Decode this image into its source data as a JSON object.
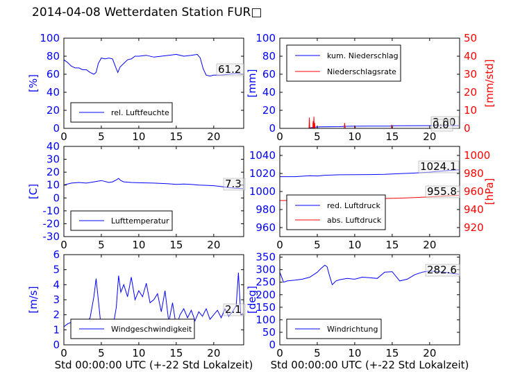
{
  "figure": {
    "title": "2014-04-08 Wetterdaten Station FUR□"
  },
  "colors": {
    "primary": "#0000ff",
    "secondary": "#ff0000",
    "light": "#8080ff",
    "frame": "#000000"
  },
  "chart_data": [
    {
      "type": "line",
      "id": "humidity",
      "ylabel": "[%]",
      "xlim": [
        0,
        24
      ],
      "ylim": [
        0,
        100
      ],
      "xticks": [
        0,
        5,
        10,
        15,
        20
      ],
      "yticks": [
        0,
        20,
        40,
        60,
        80,
        100
      ],
      "legend": "bottom-left",
      "annotations": [
        "61.2"
      ],
      "series": [
        {
          "name": "rel. Luftfeuchte",
          "color": "#0000ff",
          "x": [
            0,
            0.5,
            1,
            1.5,
            2,
            2.5,
            3,
            3.5,
            4,
            4.3,
            4.6,
            5,
            5.5,
            6,
            6.5,
            6.9,
            7.2,
            7.5,
            8,
            8.5,
            9,
            9.5,
            10,
            11,
            12,
            13,
            14,
            15,
            16,
            17,
            17.8,
            18.2,
            18.6,
            19,
            19.5,
            20,
            21,
            22,
            23,
            23.8
          ],
          "y": [
            76,
            73,
            69,
            67,
            67,
            65,
            65,
            62,
            60,
            62,
            72,
            78,
            77,
            78,
            77,
            68,
            62,
            68,
            72,
            76,
            77,
            80,
            80,
            81,
            79,
            80,
            81,
            82,
            80,
            81,
            82,
            78,
            66,
            59,
            58,
            59,
            59,
            60,
            61,
            60
          ]
        }
      ]
    },
    {
      "type": "line",
      "id": "precipitation",
      "ylabel": "[mm]",
      "y2label": "[mm/std]",
      "xlim": [
        0,
        24
      ],
      "ylim": [
        0,
        100
      ],
      "y2lim": [
        0,
        50
      ],
      "xticks": [
        0,
        5,
        10,
        15,
        20
      ],
      "yticks": [
        0,
        20,
        40,
        60,
        80,
        100
      ],
      "y2ticks": [
        0,
        10,
        20,
        30,
        40,
        50
      ],
      "legend": "top-left",
      "annotations": [
        "3.00",
        "0.0"
      ],
      "series": [
        {
          "name": "kum. Niederschlag",
          "color": "#0000ff",
          "axis": "left",
          "x": [
            0,
            3.8,
            4.2,
            4.8,
            5.5,
            8,
            8.8,
            10,
            12,
            14.8,
            15.2,
            20,
            23.9
          ],
          "y": [
            0,
            0,
            0.8,
            1.5,
            1.8,
            1.9,
            2.3,
            2.4,
            2.5,
            2.5,
            2.9,
            3.0,
            3.0
          ]
        },
        {
          "name": "Niederschlagsrate",
          "color": "#ff0000",
          "axis": "right",
          "x": [
            0,
            3.9,
            3.95,
            4.0,
            4.05,
            4.4,
            4.45,
            4.5,
            4.55,
            4.6,
            4.65,
            4.7,
            4.75,
            5.2,
            8.6,
            8.65,
            8.7,
            8.75,
            10,
            10.05,
            10.1,
            14.9,
            14.95,
            15.0,
            15.05,
            23.9
          ],
          "y": [
            0,
            0,
            6,
            0,
            0,
            0,
            4,
            0,
            6.5,
            0,
            3,
            0,
            0,
            0,
            0,
            3,
            1,
            0,
            0,
            1,
            0,
            0,
            2,
            1,
            0,
            0
          ]
        }
      ]
    },
    {
      "type": "line",
      "id": "temperature",
      "ylabel": "[C]",
      "xlim": [
        0,
        24
      ],
      "ylim": [
        -30,
        40
      ],
      "xticks": [
        0,
        5,
        10,
        15,
        20
      ],
      "yticks": [
        -30,
        -20,
        -10,
        0,
        10,
        20,
        30,
        40
      ],
      "legend": "bottom-left",
      "annotations": [
        "7.3"
      ],
      "series": [
        {
          "name": "Lufttemperatur",
          "color": "#0000ff",
          "x": [
            0,
            1,
            2,
            3,
            4,
            5,
            6,
            6.5,
            7,
            7.3,
            7.6,
            8,
            9,
            10,
            12,
            14,
            15,
            16,
            17,
            18,
            19,
            20,
            21,
            22,
            23,
            23.9
          ],
          "y": [
            10,
            11.5,
            12,
            11.5,
            12.5,
            13.5,
            12,
            12.5,
            14,
            15.2,
            13.5,
            12.5,
            12,
            11.8,
            11.5,
            11,
            10.5,
            10.8,
            10.5,
            10,
            9.8,
            9.5,
            8.8,
            8,
            7.5,
            7.3
          ]
        }
      ]
    },
    {
      "type": "line",
      "id": "pressure",
      "ylabel": "",
      "y2label": "[hPa]",
      "xlim": [
        0,
        24
      ],
      "ylim": [
        950,
        1050
      ],
      "y2lim": [
        910,
        1010
      ],
      "xticks": [
        0,
        5,
        10,
        15,
        20
      ],
      "yticks": [
        960,
        980,
        1000,
        1020,
        1040
      ],
      "y2ticks": [
        920,
        940,
        960,
        980,
        1000
      ],
      "legend": "bottom-left",
      "annotations": [
        "1024.1",
        "955.8"
      ],
      "series": [
        {
          "name": "red. Luftdruck",
          "color": "#0000ff",
          "axis": "left",
          "x": [
            0,
            2,
            4,
            5,
            6,
            8,
            10,
            12,
            14,
            16,
            18,
            20,
            22,
            23.9
          ],
          "y": [
            1016.5,
            1016.5,
            1017.5,
            1017.2,
            1018,
            1018.5,
            1018.6,
            1018.8,
            1019,
            1019.8,
            1020.5,
            1021.5,
            1023,
            1024.1
          ]
        },
        {
          "name": "abs. Luftdruck",
          "color": "#ff0000",
          "axis": "right",
          "x": [
            0,
            2,
            4,
            6,
            8,
            10,
            12,
            14,
            16,
            18,
            20,
            22,
            23.9
          ],
          "y": [
            950,
            950,
            950.5,
            951.5,
            952,
            952.3,
            952.5,
            952.3,
            952.6,
            953.2,
            954,
            955,
            955.8
          ]
        }
      ]
    },
    {
      "type": "line",
      "id": "windspeed",
      "ylabel": "[m/s]",
      "xlabel": "Std 00:00:00 UTC (+-22 Std Lokalzeit)",
      "xlim": [
        0,
        24
      ],
      "ylim": [
        0,
        6
      ],
      "xticks": [
        0,
        5,
        10,
        15,
        20
      ],
      "yticks": [
        0,
        1,
        2,
        3,
        4,
        5,
        6
      ],
      "legend": "bottom-left",
      "annotations": [
        "2.1"
      ],
      "series": [
        {
          "name": "Windgeschwindigkeit",
          "color": "#0000ff",
          "x": [
            0,
            0.5,
            1,
            1.5,
            2,
            2.5,
            3,
            3.5,
            4,
            4.3,
            4.6,
            4.9,
            5.2,
            5.5,
            6,
            6.5,
            7,
            7.3,
            7.6,
            8,
            8.5,
            9,
            9.5,
            10,
            10.5,
            11,
            11.5,
            12,
            12.5,
            13,
            13.5,
            14,
            14.5,
            15,
            15.5,
            16,
            16.5,
            17,
            17.5,
            18,
            18.5,
            19,
            19.5,
            20,
            20.5,
            21,
            21.5,
            22,
            22.5,
            23,
            23.3,
            23.6,
            23.9
          ],
          "y": [
            1.2,
            1.4,
            1.5,
            1.6,
            1.6,
            1.7,
            1.5,
            1.8,
            3.2,
            4.4,
            3.0,
            1.5,
            0.6,
            0.8,
            0.7,
            1.0,
            2.5,
            4.6,
            3.5,
            4.0,
            3.2,
            4.5,
            3.0,
            3.6,
            3.2,
            4.1,
            2.8,
            3.0,
            3.4,
            2.2,
            3.6,
            1.5,
            2.8,
            1.2,
            2.0,
            2.4,
            1.8,
            2.3,
            1.6,
            2.2,
            1.9,
            2.4,
            1.7,
            2.0,
            2.3,
            1.8,
            2.4,
            1.9,
            2.2,
            2.6,
            4.8,
            2.0,
            2.1
          ]
        }
      ]
    },
    {
      "type": "line",
      "id": "winddirection",
      "ylabel": "[deg]",
      "xlabel": "Std 00:00:00 UTC (+-22 Std Lokalzeit)",
      "xlim": [
        0,
        24
      ],
      "ylim": [
        0,
        360
      ],
      "xticks": [
        0,
        5,
        10,
        15,
        20
      ],
      "yticks": [
        0,
        50,
        100,
        150,
        200,
        250,
        300,
        350
      ],
      "legend": "bottom-left",
      "annotations": [
        "282.6"
      ],
      "series": [
        {
          "name": "Windrichtung",
          "color": "#0000ff",
          "x": [
            0,
            0.5,
            1,
            2,
            3,
            4,
            5,
            5.5,
            6,
            6.3,
            6.6,
            7,
            7.5,
            8,
            9,
            10,
            11,
            12,
            13,
            14,
            15,
            16,
            17,
            18,
            19,
            20,
            21,
            22,
            23,
            23.9
          ],
          "y": [
            290,
            250,
            255,
            258,
            262,
            270,
            290,
            305,
            318,
            312,
            280,
            240,
            255,
            260,
            265,
            262,
            270,
            268,
            265,
            290,
            292,
            255,
            262,
            280,
            290,
            295,
            292,
            290,
            285,
            282
          ]
        }
      ]
    }
  ]
}
